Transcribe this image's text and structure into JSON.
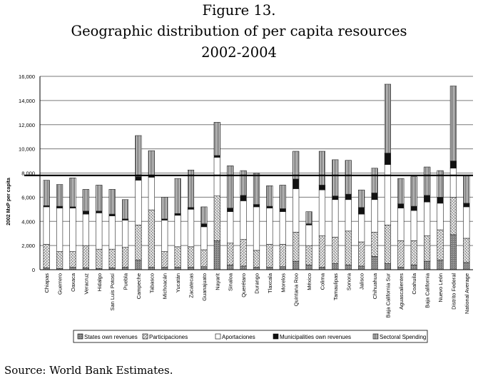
{
  "figure": {
    "label": "Figure 13.",
    "title": "Geographic distribution of per capita resources",
    "period": "2002-2004"
  },
  "source": "Source: World Bank Estimates.",
  "chart_data": {
    "type": "bar",
    "stacked": true,
    "ylabel": "2002 MxP per capita",
    "xlabel": "",
    "ylim": [
      0,
      16000
    ],
    "yticks": [
      0,
      2000,
      4000,
      6000,
      8000,
      10000,
      12000,
      14000,
      16000
    ],
    "ytick_labels": [
      "0",
      "2,000",
      "4,000",
      "6,000",
      "8,000",
      "10,000",
      "12,000",
      "14,000",
      "16,000"
    ],
    "grid": true,
    "legend_position": "bottom",
    "reference_line": 7800,
    "categories": [
      "Chiapas",
      "Guerrero",
      "Oaxaca",
      "Veracruz",
      "Hidalgo",
      "San Luis Potosí",
      "Puebla",
      "Campeche",
      "Tabasco",
      "Michoacán",
      "Yucatán",
      "Zacatecas",
      "Guanajuato",
      "Nayarit",
      "Sinaloa",
      "Querétaro",
      "Durango",
      "Tlaxcala",
      "Morelos",
      "Quintana Roo",
      "México",
      "Colima",
      "Tamaulipas",
      "Sonora",
      "Jalisco",
      "Chihuahua",
      "Baja California Sur",
      "Aguascalientes",
      "Coahuila",
      "Baja California",
      "Nuevo León",
      "Distrito Federal",
      "National Average"
    ],
    "series": [
      {
        "name": "States own revenues",
        "values": [
          150,
          100,
          200,
          150,
          100,
          150,
          200,
          800,
          200,
          200,
          200,
          200,
          250,
          2400,
          400,
          300,
          200,
          200,
          250,
          700,
          400,
          200,
          500,
          400,
          300,
          1100,
          500,
          200,
          400,
          700,
          800,
          2900,
          600
        ]
      },
      {
        "name": "Participaciones",
        "values": [
          1950,
          1400,
          1300,
          1850,
          1600,
          1550,
          1650,
          2900,
          4750,
          1300,
          1700,
          1700,
          1400,
          3700,
          1800,
          2200,
          1400,
          1900,
          1850,
          2400,
          1600,
          2600,
          2200,
          2800,
          2000,
          2000,
          3200,
          2200,
          2000,
          2100,
          2500,
          3100,
          2000
        ]
      },
      {
        "name": "Aportaciones",
        "values": [
          3100,
          3600,
          3600,
          2600,
          3000,
          2750,
          2250,
          3700,
          2700,
          2600,
          2600,
          3100,
          1900,
          3200,
          2600,
          3200,
          3600,
          3000,
          2700,
          3600,
          1700,
          3800,
          3100,
          2600,
          2300,
          2700,
          5000,
          2700,
          2500,
          2800,
          2200,
          2400,
          2600
        ]
      },
      {
        "name": "Municipalities own revenues",
        "values": [
          100,
          150,
          100,
          250,
          150,
          150,
          100,
          300,
          100,
          100,
          150,
          150,
          250,
          150,
          300,
          450,
          200,
          150,
          250,
          800,
          100,
          400,
          300,
          450,
          550,
          550,
          950,
          350,
          350,
          550,
          500,
          600,
          300
        ]
      },
      {
        "name": "Sectoral Spending",
        "values": [
          2100,
          1800,
          2400,
          1800,
          2150,
          2050,
          1600,
          3400,
          2100,
          1800,
          2900,
          3100,
          1400,
          2750,
          3500,
          2050,
          2600,
          1700,
          1950,
          2300,
          1000,
          2800,
          3000,
          2800,
          1450,
          2050,
          5700,
          2100,
          2450,
          2350,
          2200,
          6200,
          2300
        ]
      }
    ]
  }
}
